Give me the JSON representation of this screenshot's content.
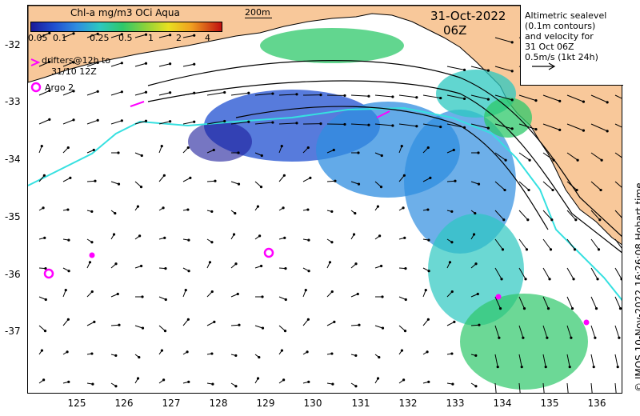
{
  "colorbar": {
    "title": "Chl-a mg/m3 OCi Aqua",
    "ticks": [
      "0.05",
      "0.1",
      "0.25",
      "0.5",
      "1",
      "2",
      "4"
    ]
  },
  "date": "31-Oct-2022",
  "hour": "06Z",
  "scale_label": "200m",
  "legend": {
    "lines": [
      "Altimetric sealevel",
      "(0.1m contours)",
      "and velocity for",
      "31 Oct 06Z",
      "0.5m/s (1kt 24h)"
    ]
  },
  "drifters": {
    "line1": "drifters@12h to",
    "line2": "31/10 12Z",
    "argo": "Argo 2"
  },
  "axes": {
    "lat_labels": [
      "-32",
      "-33",
      "-34",
      "-35",
      "-36",
      "-37"
    ],
    "lon_labels": [
      "125",
      "126",
      "127",
      "128",
      "129",
      "130",
      "131",
      "132",
      "133",
      "134",
      "135",
      "136"
    ]
  },
  "credit": "© IMOS 10-Nov-2022 16:26:08 Hobart time",
  "colors": {
    "land": "#f8c89a",
    "isobath": "#36e0e0",
    "drifter": "#ff00ff",
    "chl_low": "#1f4fd0",
    "chl_mid": "#2cc8c0",
    "chl_high": "#2ec86a"
  }
}
